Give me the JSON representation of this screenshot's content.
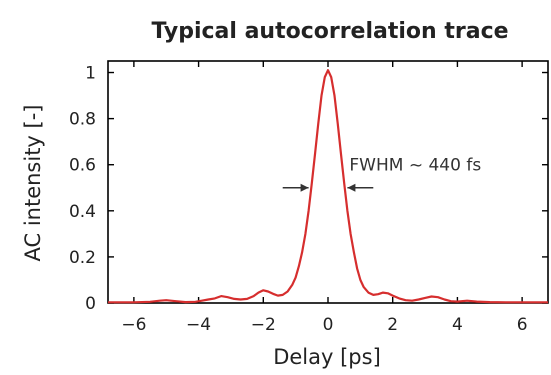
{
  "chart_data": {
    "type": "line",
    "title": "Typical autocorrelation trace",
    "xlabel": "Delay [ps]",
    "ylabel": "AC intensity [-]",
    "xlim": [
      -6.8,
      6.8
    ],
    "ylim": [
      0,
      1.05
    ],
    "x_ticks": [
      -6,
      -4,
      -2,
      0,
      2,
      4,
      6
    ],
    "x_tick_labels": [
      "−6",
      "−4",
      "−2",
      "0",
      "2",
      "4",
      "6"
    ],
    "y_ticks": [
      0,
      0.2,
      0.4,
      0.6,
      0.8,
      1
    ],
    "y_tick_labels": [
      "0",
      "0.2",
      "0.4",
      "0.6",
      "0.8",
      "1"
    ],
    "grid": false,
    "annotation": {
      "text": "FWHM ~ 440 fs",
      "arrow_y": 0.5,
      "left_arrow_x": [
        -1.4,
        -0.6
      ],
      "right_arrow_x": [
        1.4,
        0.6
      ]
    },
    "series": [
      {
        "color": "#d62e2e",
        "x": [
          -6.8,
          -6.0,
          -5.5,
          -5.2,
          -5.0,
          -4.7,
          -4.4,
          -4.1,
          -3.9,
          -3.7,
          -3.5,
          -3.3,
          -3.1,
          -2.9,
          -2.7,
          -2.5,
          -2.3,
          -2.15,
          -2.0,
          -1.85,
          -1.7,
          -1.55,
          -1.4,
          -1.25,
          -1.1,
          -1.0,
          -0.9,
          -0.8,
          -0.7,
          -0.6,
          -0.5,
          -0.4,
          -0.3,
          -0.2,
          -0.1,
          0.0,
          0.1,
          0.2,
          0.3,
          0.4,
          0.5,
          0.6,
          0.7,
          0.8,
          0.9,
          1.0,
          1.1,
          1.25,
          1.4,
          1.55,
          1.7,
          1.85,
          2.0,
          2.2,
          2.4,
          2.6,
          2.8,
          3.0,
          3.2,
          3.4,
          3.6,
          3.8,
          4.0,
          4.3,
          4.6,
          5.0,
          5.5,
          6.0,
          6.8
        ],
        "y": [
          0.003,
          0.003,
          0.005,
          0.01,
          0.012,
          0.008,
          0.004,
          0.005,
          0.01,
          0.015,
          0.02,
          0.03,
          0.025,
          0.018,
          0.015,
          0.018,
          0.03,
          0.045,
          0.055,
          0.05,
          0.04,
          0.032,
          0.035,
          0.05,
          0.08,
          0.11,
          0.16,
          0.22,
          0.3,
          0.4,
          0.52,
          0.65,
          0.78,
          0.9,
          0.98,
          1.01,
          0.98,
          0.9,
          0.78,
          0.65,
          0.52,
          0.4,
          0.3,
          0.22,
          0.15,
          0.1,
          0.07,
          0.045,
          0.035,
          0.038,
          0.045,
          0.042,
          0.032,
          0.02,
          0.012,
          0.01,
          0.015,
          0.022,
          0.028,
          0.025,
          0.015,
          0.008,
          0.006,
          0.01,
          0.006,
          0.004,
          0.003,
          0.003,
          0.003
        ]
      }
    ]
  }
}
